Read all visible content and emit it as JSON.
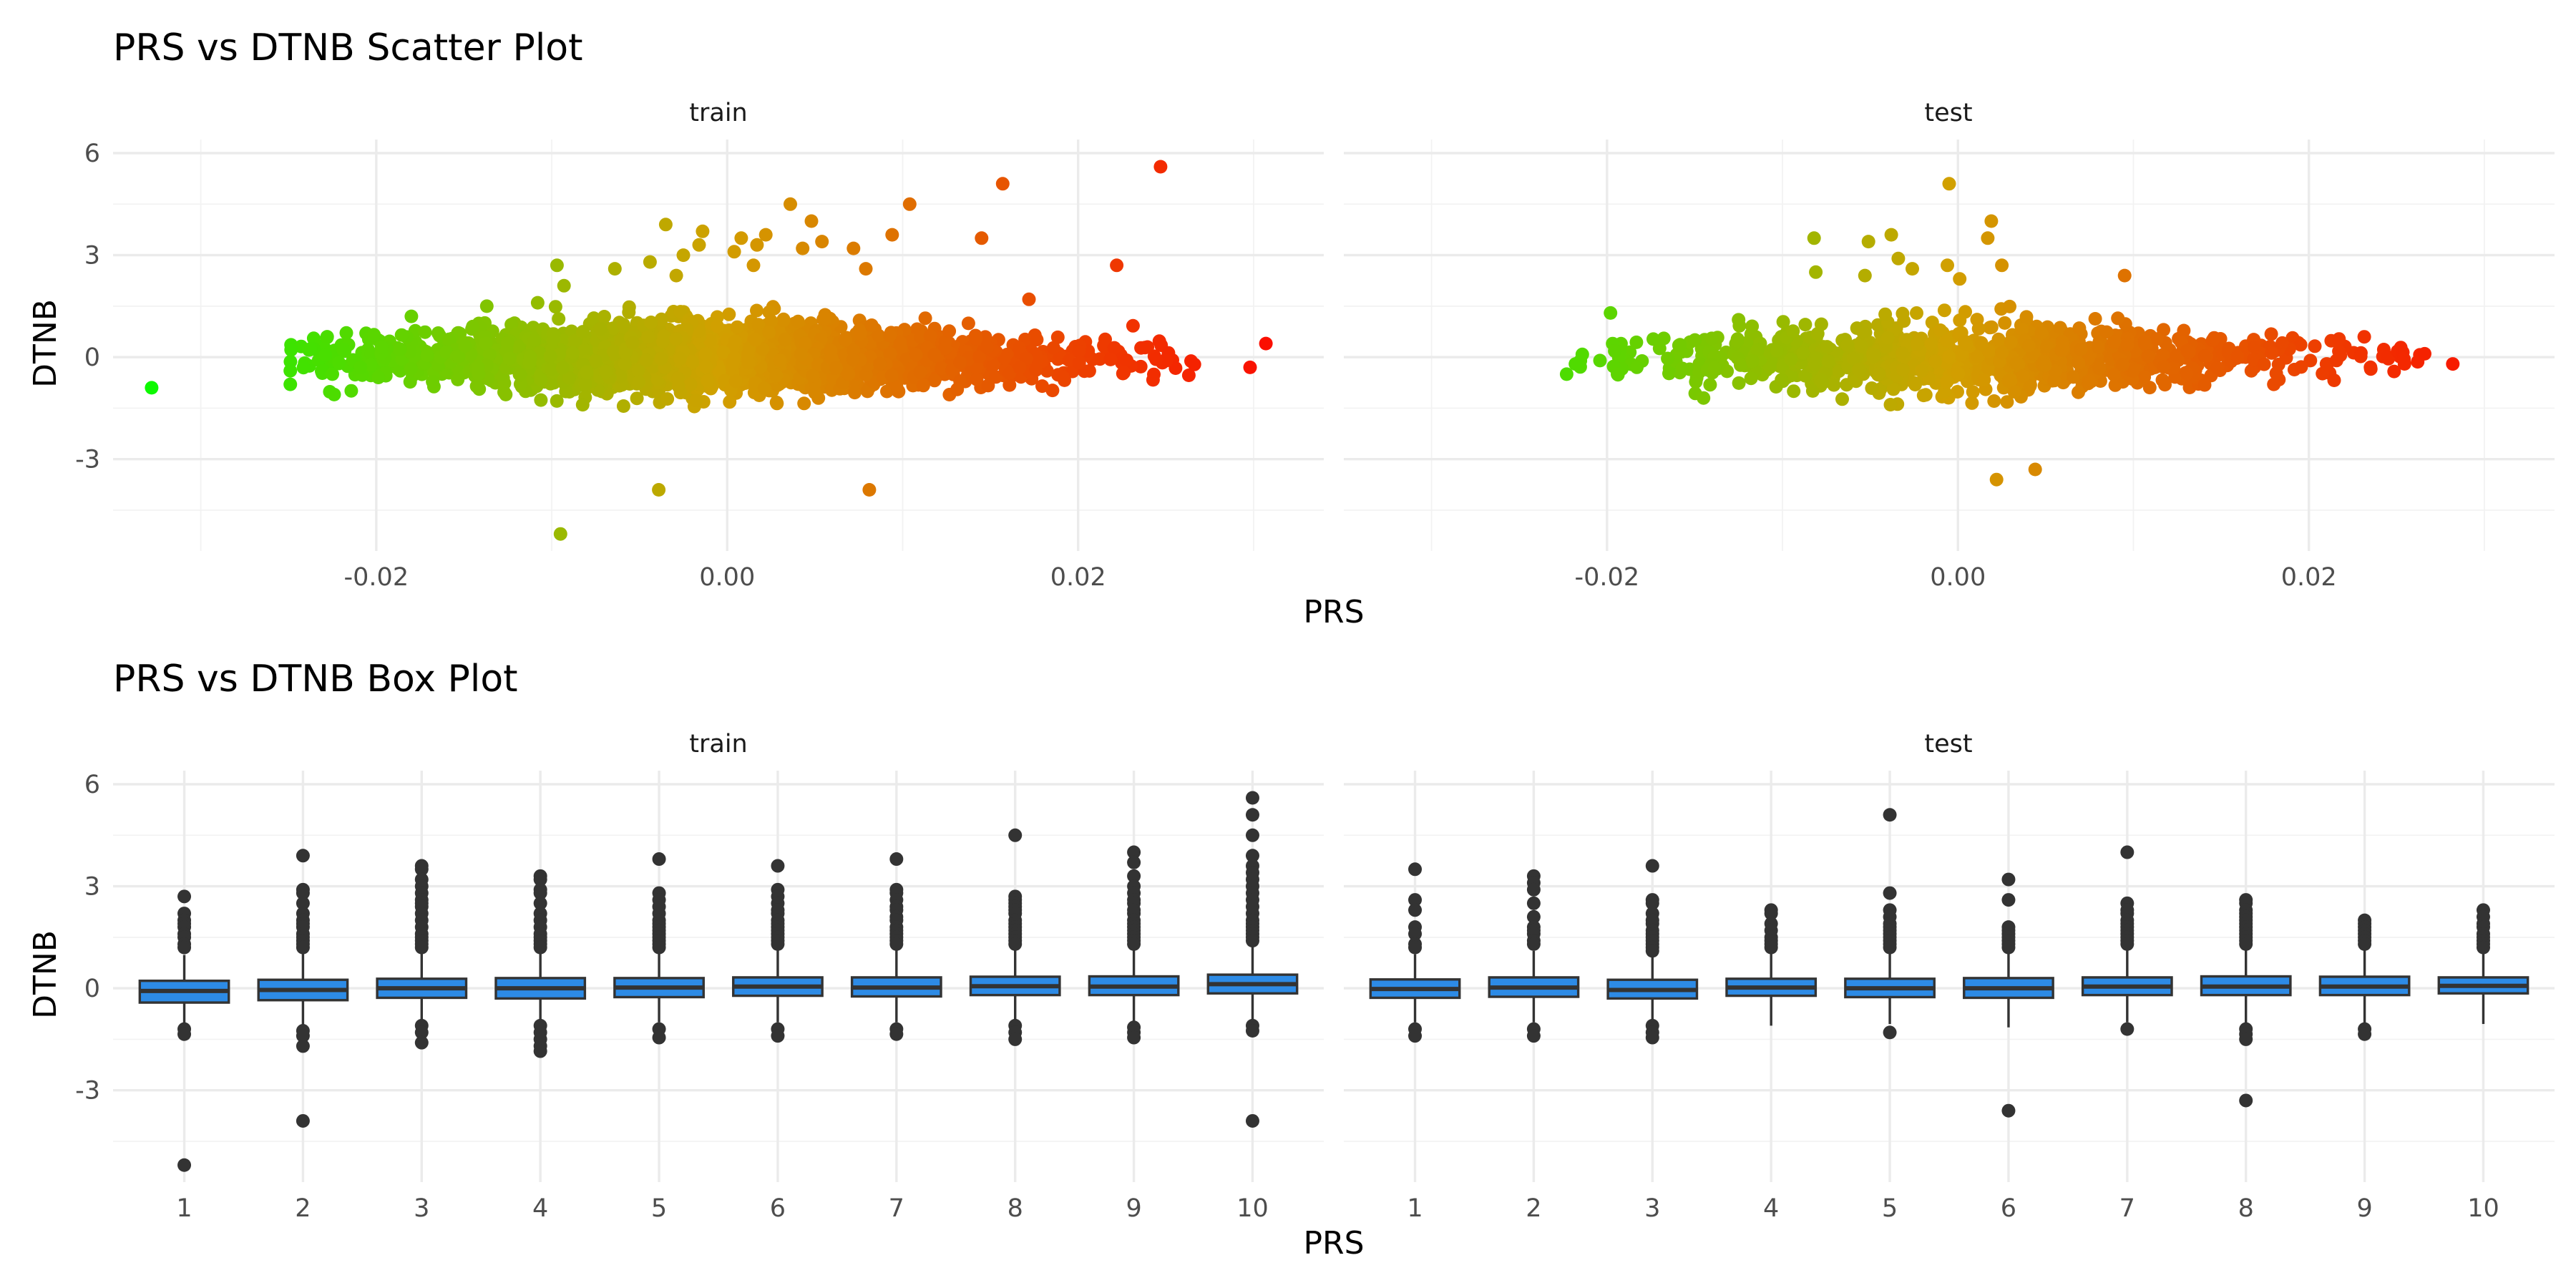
{
  "chart_data": [
    {
      "type": "scatter",
      "title": "PRS vs DTNB Scatter Plot",
      "xlabel": "PRS",
      "ylabel": "DTNB",
      "facets": [
        "train",
        "test"
      ],
      "xlim": [
        -0.035,
        0.034
      ],
      "ylim": [
        -5.7,
        6.4
      ],
      "x_ticks": [
        -0.02,
        0.0,
        0.02
      ],
      "x_tick_labels": [
        "-0.02",
        "0.00",
        "0.02"
      ],
      "y_ticks": [
        6,
        3,
        0,
        -3
      ],
      "y_tick_labels": [
        "6",
        "3",
        "0",
        "-3"
      ],
      "grid": true,
      "legend": "none",
      "color_scale": {
        "low": "#00ff00",
        "mid": "#d1a000",
        "high": "#ff0000",
        "variable": "PRS"
      },
      "series": [
        {
          "facet": "train",
          "clusters": [
            {
              "x_range": [
                -0.025,
                0.027
              ],
              "y_sd": 0.45,
              "count": 2600
            }
          ],
          "points": [
            {
              "x": -0.0328,
              "y": -0.9
            },
            {
              "x": -0.0249,
              "y": -0.4
            },
            {
              "x": -0.0249,
              "y": -0.8
            },
            {
              "x": -0.0228,
              "y": 0.6
            },
            {
              "x": -0.0225,
              "y": -0.5
            },
            {
              "x": -0.0224,
              "y": -1.1
            },
            {
              "x": -0.0209,
              "y": -0.3
            },
            {
              "x": -0.0197,
              "y": 0.3
            },
            {
              "x": -0.018,
              "y": 1.2
            },
            {
              "x": -0.0145,
              "y": 0.9
            },
            {
              "x": -0.0142,
              "y": -0.3
            },
            {
              "x": -0.0137,
              "y": 1.5
            },
            {
              "x": -0.0108,
              "y": 1.6
            },
            {
              "x": -0.0097,
              "y": 2.7
            },
            {
              "x": -0.0093,
              "y": 2.1
            },
            {
              "x": -0.0095,
              "y": -5.2
            },
            {
              "x": -0.0064,
              "y": 2.6
            },
            {
              "x": -0.0044,
              "y": 2.8
            },
            {
              "x": -0.0039,
              "y": -3.9
            },
            {
              "x": -0.0035,
              "y": 3.9
            },
            {
              "x": -0.0029,
              "y": 2.4
            },
            {
              "x": -0.0025,
              "y": 3.0
            },
            {
              "x": -0.0016,
              "y": 3.3
            },
            {
              "x": -0.0014,
              "y": 3.7
            },
            {
              "x": 0.0004,
              "y": 3.1
            },
            {
              "x": 0.0008,
              "y": 3.5
            },
            {
              "x": 0.0015,
              "y": 2.7
            },
            {
              "x": 0.0017,
              "y": 3.3
            },
            {
              "x": 0.0022,
              "y": 3.6
            },
            {
              "x": 0.0036,
              "y": 4.5
            },
            {
              "x": 0.0043,
              "y": 3.2
            },
            {
              "x": 0.0048,
              "y": 4.0
            },
            {
              "x": 0.0054,
              "y": 3.4
            },
            {
              "x": 0.0072,
              "y": 3.2
            },
            {
              "x": 0.0079,
              "y": 2.6
            },
            {
              "x": 0.0081,
              "y": -3.9
            },
            {
              "x": 0.0094,
              "y": 3.6
            },
            {
              "x": 0.0104,
              "y": 4.5
            },
            {
              "x": 0.0145,
              "y": 3.5
            },
            {
              "x": 0.0157,
              "y": 5.1
            },
            {
              "x": 0.0172,
              "y": 1.7
            },
            {
              "x": 0.0222,
              "y": 2.7
            },
            {
              "x": 0.0247,
              "y": 5.6
            },
            {
              "x": 0.0298,
              "y": -0.3
            },
            {
              "x": 0.0307,
              "y": 0.4
            }
          ]
        },
        {
          "facet": "test",
          "clusters": [
            {
              "x_range": [
                -0.022,
                0.028
              ],
              "y_sd": 0.45,
              "count": 1000
            }
          ],
          "points": [
            {
              "x": -0.0223,
              "y": -0.5
            },
            {
              "x": -0.0218,
              "y": -0.2
            },
            {
              "x": -0.0204,
              "y": -0.1
            },
            {
              "x": -0.0198,
              "y": 1.3
            },
            {
              "x": -0.0194,
              "y": -0.5
            },
            {
              "x": -0.0145,
              "y": -1.2
            },
            {
              "x": -0.0125,
              "y": 1.1
            },
            {
              "x": -0.0082,
              "y": 3.5
            },
            {
              "x": -0.0081,
              "y": 2.5
            },
            {
              "x": -0.0053,
              "y": 2.4
            },
            {
              "x": -0.0051,
              "y": 3.4
            },
            {
              "x": -0.0038,
              "y": 3.6
            },
            {
              "x": -0.0034,
              "y": 2.9
            },
            {
              "x": -0.0026,
              "y": 2.6
            },
            {
              "x": -0.0006,
              "y": 2.7
            },
            {
              "x": -0.0005,
              "y": 5.1
            },
            {
              "x": 0.0001,
              "y": 2.3
            },
            {
              "x": 0.0017,
              "y": 3.5
            },
            {
              "x": 0.0019,
              "y": 4.0
            },
            {
              "x": 0.0022,
              "y": -3.6
            },
            {
              "x": 0.0025,
              "y": 2.7
            },
            {
              "x": 0.0044,
              "y": -3.3
            },
            {
              "x": 0.0095,
              "y": 2.4
            },
            {
              "x": 0.018,
              "y": -0.8
            },
            {
              "x": 0.0266,
              "y": 0.1
            },
            {
              "x": 0.0282,
              "y": -0.2
            }
          ]
        }
      ]
    },
    {
      "type": "box",
      "title": "PRS vs DTNB Box Plot",
      "xlabel": "PRS",
      "ylabel": "DTNB",
      "facets": [
        "train",
        "test"
      ],
      "categories": [
        "1",
        "2",
        "3",
        "4",
        "5",
        "6",
        "7",
        "8",
        "9",
        "10"
      ],
      "ylim": [
        -5.7,
        6.4
      ],
      "y_ticks": [
        6,
        3,
        0,
        -3
      ],
      "y_tick_labels": [
        "6",
        "3",
        "0",
        "-3"
      ],
      "grid": true,
      "legend": "none",
      "box_color": "#2d8be6",
      "outline_color": "#333333",
      "series": [
        {
          "facet": "train",
          "boxes": [
            {
              "category": "1",
              "q1": -0.42,
              "median": -0.08,
              "q3": 0.22,
              "whisker_low": -1.15,
              "whisker_high": 0.98,
              "outliers": [
                2.7,
                2.2,
                2.0,
                1.9,
                1.8,
                1.6,
                1.5,
                1.3,
                1.2,
                -1.2,
                -1.35,
                -5.2
              ]
            },
            {
              "category": "2",
              "q1": -0.35,
              "median": -0.05,
              "q3": 0.25,
              "whisker_low": -1.1,
              "whisker_high": 1.1,
              "outliers": [
                3.9,
                2.9,
                2.8,
                2.5,
                2.2,
                2.0,
                1.9,
                1.8,
                1.6,
                1.5,
                1.4,
                1.3,
                1.2,
                -1.25,
                -1.4,
                -1.7,
                -3.9
              ]
            },
            {
              "category": "3",
              "q1": -0.28,
              "median": 0.0,
              "q3": 0.28,
              "whisker_low": -1.0,
              "whisker_high": 1.1,
              "outliers": [
                3.6,
                3.5,
                3.2,
                3.0,
                2.8,
                2.6,
                2.5,
                2.4,
                2.2,
                2.0,
                1.8,
                1.6,
                1.5,
                1.4,
                1.3,
                1.2,
                -1.1,
                -1.3,
                -1.6
              ]
            },
            {
              "category": "4",
              "q1": -0.3,
              "median": 0.0,
              "q3": 0.3,
              "whisker_low": -1.0,
              "whisker_high": 1.1,
              "outliers": [
                3.3,
                3.2,
                2.9,
                2.8,
                2.5,
                2.2,
                2.0,
                1.8,
                1.6,
                1.5,
                1.4,
                1.3,
                1.2,
                -1.1,
                -1.3,
                -1.5,
                -1.7,
                -1.85
              ]
            },
            {
              "category": "5",
              "q1": -0.26,
              "median": 0.02,
              "q3": 0.3,
              "whisker_low": -1.0,
              "whisker_high": 1.1,
              "outliers": [
                3.8,
                2.8,
                2.6,
                2.4,
                2.2,
                2.0,
                1.9,
                1.8,
                1.7,
                1.6,
                1.5,
                1.4,
                1.3,
                1.2,
                -1.2,
                -1.45
              ]
            },
            {
              "category": "6",
              "q1": -0.22,
              "median": 0.05,
              "q3": 0.32,
              "whisker_low": -1.0,
              "whisker_high": 1.2,
              "outliers": [
                3.6,
                2.9,
                2.7,
                2.5,
                2.3,
                2.2,
                2.0,
                1.9,
                1.8,
                1.7,
                1.6,
                1.5,
                1.4,
                1.3,
                -1.2,
                -1.4
              ]
            },
            {
              "category": "7",
              "q1": -0.24,
              "median": 0.02,
              "q3": 0.32,
              "whisker_low": -1.0,
              "whisker_high": 1.2,
              "outliers": [
                3.8,
                2.9,
                2.8,
                2.6,
                2.4,
                2.3,
                2.1,
                2.0,
                1.8,
                1.7,
                1.6,
                1.5,
                1.4,
                1.3,
                -1.2,
                -1.35
              ]
            },
            {
              "category": "8",
              "q1": -0.2,
              "median": 0.06,
              "q3": 0.34,
              "whisker_low": -1.0,
              "whisker_high": 1.2,
              "outliers": [
                4.5,
                2.7,
                2.6,
                2.5,
                2.4,
                2.3,
                2.2,
                2.0,
                1.9,
                1.8,
                1.7,
                1.6,
                1.5,
                1.4,
                1.3,
                -1.1,
                -1.3,
                -1.5
              ]
            },
            {
              "category": "9",
              "q1": -0.2,
              "median": 0.05,
              "q3": 0.35,
              "whisker_low": -1.0,
              "whisker_high": 1.2,
              "outliers": [
                4.0,
                3.7,
                3.3,
                3.0,
                2.8,
                2.6,
                2.5,
                2.3,
                2.2,
                2.0,
                1.9,
                1.8,
                1.7,
                1.6,
                1.5,
                1.4,
                1.3,
                -1.15,
                -1.3,
                -1.45
              ]
            },
            {
              "category": "10",
              "q1": -0.15,
              "median": 0.12,
              "q3": 0.4,
              "whisker_low": -0.95,
              "whisker_high": 1.3,
              "outliers": [
                5.6,
                5.1,
                4.5,
                3.9,
                3.6,
                3.4,
                3.2,
                3.0,
                2.8,
                2.6,
                2.4,
                2.2,
                2.0,
                1.9,
                1.8,
                1.7,
                1.6,
                1.5,
                1.4,
                -1.1,
                -1.25,
                -3.9
              ]
            }
          ]
        },
        {
          "facet": "test",
          "boxes": [
            {
              "category": "1",
              "q1": -0.28,
              "median": -0.02,
              "q3": 0.26,
              "whisker_low": -1.0,
              "whisker_high": 1.0,
              "outliers": [
                3.5,
                2.6,
                2.3,
                1.8,
                1.6,
                1.3,
                1.2,
                -1.2,
                -1.4
              ]
            },
            {
              "category": "2",
              "q1": -0.25,
              "median": 0.02,
              "q3": 0.32,
              "whisker_low": -1.0,
              "whisker_high": 1.1,
              "outliers": [
                3.3,
                3.1,
                2.9,
                2.5,
                2.1,
                1.8,
                1.7,
                1.6,
                1.4,
                1.3,
                -1.2,
                -1.4
              ]
            },
            {
              "category": "3",
              "q1": -0.3,
              "median": -0.05,
              "q3": 0.25,
              "whisker_low": -1.0,
              "whisker_high": 1.0,
              "outliers": [
                3.6,
                2.6,
                2.5,
                2.2,
                2.0,
                1.9,
                1.7,
                1.6,
                1.5,
                1.4,
                1.3,
                1.2,
                1.1,
                -1.1,
                -1.3,
                -1.45
              ]
            },
            {
              "category": "4",
              "q1": -0.22,
              "median": 0.02,
              "q3": 0.28,
              "whisker_low": -1.1,
              "whisker_high": 1.1,
              "outliers": [
                2.3,
                2.2,
                1.9,
                1.7,
                1.5,
                1.4,
                1.3,
                1.2
              ]
            },
            {
              "category": "5",
              "q1": -0.26,
              "median": 0.0,
              "q3": 0.28,
              "whisker_low": -1.05,
              "whisker_high": 1.1,
              "outliers": [
                5.1,
                2.8,
                2.3,
                2.1,
                1.9,
                1.8,
                1.7,
                1.6,
                1.5,
                1.4,
                1.3,
                1.2,
                -1.3
              ]
            },
            {
              "category": "6",
              "q1": -0.28,
              "median": 0.0,
              "q3": 0.3,
              "whisker_low": -1.15,
              "whisker_high": 1.1,
              "outliers": [
                3.2,
                2.6,
                1.8,
                1.7,
                1.6,
                1.5,
                1.4,
                1.3,
                1.2,
                -3.6
              ]
            },
            {
              "category": "7",
              "q1": -0.2,
              "median": 0.05,
              "q3": 0.32,
              "whisker_low": -1.0,
              "whisker_high": 1.2,
              "outliers": [
                4.0,
                2.5,
                2.3,
                2.2,
                2.0,
                1.9,
                1.8,
                1.7,
                1.6,
                1.5,
                1.4,
                1.3,
                -1.2
              ]
            },
            {
              "category": "8",
              "q1": -0.2,
              "median": 0.05,
              "q3": 0.35,
              "whisker_low": -1.05,
              "whisker_high": 1.2,
              "outliers": [
                2.6,
                2.5,
                2.3,
                2.2,
                2.1,
                2.0,
                1.9,
                1.8,
                1.7,
                1.6,
                1.5,
                1.4,
                1.3,
                -1.2,
                -1.35,
                -1.5,
                -3.3
              ]
            },
            {
              "category": "9",
              "q1": -0.2,
              "median": 0.05,
              "q3": 0.34,
              "whisker_low": -1.1,
              "whisker_high": 1.2,
              "outliers": [
                2.0,
                1.9,
                1.8,
                1.7,
                1.6,
                1.5,
                1.4,
                1.3,
                -1.2,
                -1.35
              ]
            },
            {
              "category": "10",
              "q1": -0.15,
              "median": 0.07,
              "q3": 0.32,
              "whisker_low": -1.05,
              "whisker_high": 1.1,
              "outliers": [
                2.3,
                2.1,
                1.9,
                1.8,
                1.6,
                1.5,
                1.4,
                1.3,
                1.2
              ]
            }
          ]
        }
      ]
    }
  ]
}
